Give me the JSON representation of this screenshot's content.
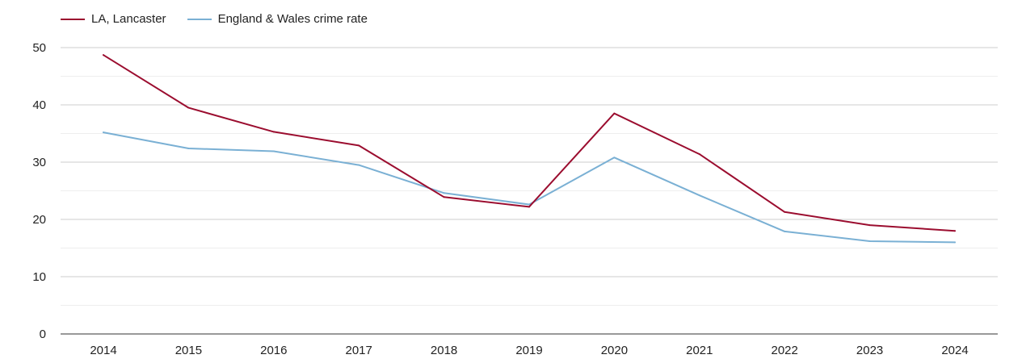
{
  "chart_data": {
    "type": "line",
    "title": "",
    "xlabel": "",
    "ylabel": "",
    "categories": [
      "2014",
      "2015",
      "2016",
      "2017",
      "2018",
      "2019",
      "2020",
      "2021",
      "2022",
      "2023",
      "2024"
    ],
    "ylim": [
      0,
      50
    ],
    "yticks": [
      "0",
      "10",
      "20",
      "30",
      "40",
      "50"
    ],
    "grid": true,
    "legend_position": "top-left",
    "series": [
      {
        "name": "LA, Lancaster",
        "color": "#9b0d2f",
        "values": [
          48.7,
          39.5,
          35.3,
          32.9,
          23.9,
          22.2,
          38.5,
          31.4,
          21.3,
          19.0,
          18.0
        ]
      },
      {
        "name": "England & Wales crime rate",
        "color": "#7ab0d4",
        "values": [
          35.2,
          32.4,
          31.9,
          29.5,
          24.6,
          22.6,
          30.8,
          24.2,
          17.9,
          16.2,
          16.0
        ]
      }
    ]
  }
}
